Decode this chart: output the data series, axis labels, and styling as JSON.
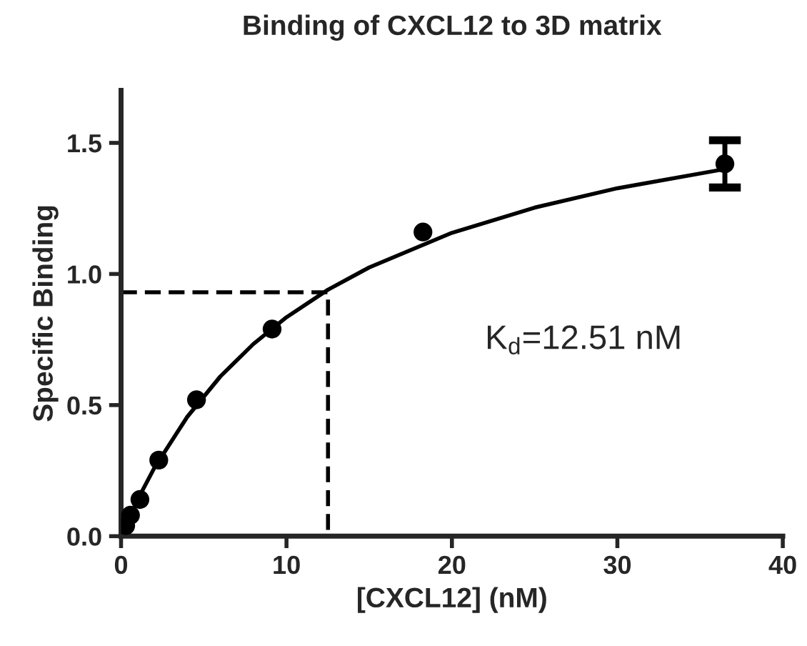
{
  "chart_data": {
    "type": "scatter",
    "title": "Binding of CXCL12 to 3D matrix",
    "xlabel": "[CXCL12] (nM)",
    "ylabel": "Specific Binding",
    "xlim": [
      0,
      40
    ],
    "xticks": [
      0,
      10,
      20,
      30,
      40
    ],
    "ylim": [
      0,
      1.7
    ],
    "yticks": [
      {
        "value": 0,
        "label": "0.0"
      },
      0.5,
      {
        "value": 1,
        "label": "1.0"
      },
      1.5
    ],
    "grid": false,
    "legend": false,
    "series": [
      {
        "type": "line",
        "color": "#000000",
        "line_style": "solid",
        "marker": "none",
        "x": [
          0,
          1,
          2,
          4,
          6,
          8,
          10,
          12.51,
          15,
          20,
          25,
          30,
          36.5
        ],
        "values": [
          0,
          0.139,
          0.259,
          0.455,
          0.609,
          0.733,
          0.835,
          0.94,
          1.025,
          1.157,
          1.253,
          1.327,
          1.4
        ]
      },
      {
        "type": "line",
        "color": "#000000",
        "line_style": "dashed",
        "marker": "none",
        "x": [
          0,
          12.51,
          12.51
        ],
        "values": [
          0.93,
          0.93,
          0
        ]
      },
      {
        "color": "#000000",
        "marker": "circle",
        "x": [
          0.28,
          0.57,
          1.14,
          2.28,
          4.56,
          9.13,
          18.25,
          36.5
        ],
        "values": [
          0.04,
          0.08,
          0.14,
          0.29,
          0.52,
          0.79,
          1.16,
          1.42
        ],
        "errors": [
          null,
          null,
          null,
          null,
          null,
          null,
          null,
          0.09
        ]
      }
    ],
    "annotations": [
      "K$_{d}$=12.51 nM"
    ]
  }
}
